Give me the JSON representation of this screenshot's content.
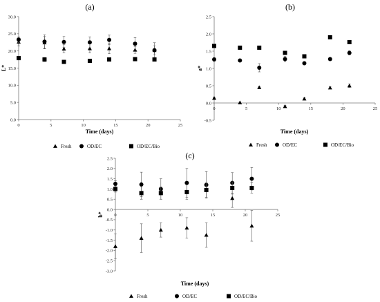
{
  "chart_data": [
    {
      "type": "scatter",
      "panel_label": "(a)",
      "xlabel": "Time (days)",
      "ylabel": "L*",
      "xlim": [
        0,
        25
      ],
      "ylim": [
        0,
        30
      ],
      "x_ticks": [
        "0",
        "5",
        "10",
        "15",
        "20",
        "25"
      ],
      "y_ticks": [
        "0.0",
        "5.0",
        "10.0",
        "15.0",
        "20.0",
        "25.0",
        "30.0"
      ],
      "grid": false,
      "legend_position": "bottom",
      "series": [
        {
          "name": "Fresh",
          "marker": "triangle",
          "x": [
            0,
            4,
            7,
            11,
            14,
            18,
            21
          ],
          "y": [
            22.6,
            22.4,
            20.6,
            20.7,
            20.7,
            20.3,
            20.2
          ],
          "err": [
            1.2,
            1.8,
            1.2,
            1.3,
            1.5,
            1.0,
            1.3
          ]
        },
        {
          "name": "OD/EC",
          "marker": "circle",
          "x": [
            0,
            4,
            7,
            11,
            14,
            18,
            21
          ],
          "y": [
            23.3,
            22.7,
            22.6,
            22.5,
            23.2,
            22.1,
            20.2
          ],
          "err": [
            0.8,
            2.0,
            1.6,
            1.6,
            1.4,
            1.8,
            2.2
          ]
        },
        {
          "name": "OD/EC/Bio",
          "marker": "square",
          "x": [
            0,
            4,
            7,
            11,
            14,
            18,
            21
          ],
          "y": [
            17.9,
            17.5,
            16.8,
            17.1,
            17.5,
            17.6,
            17.5
          ],
          "err": [
            0.4,
            0.6,
            0.4,
            0.3,
            0.5,
            0.4,
            0.4
          ]
        }
      ]
    },
    {
      "type": "scatter",
      "panel_label": "(b)",
      "xlabel": "Time (days)",
      "ylabel": "a*",
      "xlim": [
        0,
        25
      ],
      "ylim": [
        -0.5,
        2.5
      ],
      "x_ticks": [
        "0",
        "5",
        "10",
        "15",
        "20",
        "25"
      ],
      "y_ticks": [
        "-0.5",
        "0.0",
        "0.5",
        "1.0",
        "1.5",
        "2.0",
        "2.5"
      ],
      "grid": false,
      "legend_position": "bottom",
      "series": [
        {
          "name": "Fresh",
          "marker": "triangle",
          "x": [
            0,
            4,
            7,
            11,
            14,
            18,
            21
          ],
          "y": [
            0.14,
            0.01,
            0.45,
            -0.1,
            0.12,
            0.44,
            0.5
          ],
          "err": [
            0.03,
            0.02,
            0.03,
            0.03,
            0.03,
            0.03,
            0.05
          ]
        },
        {
          "name": "OD/EC",
          "marker": "circle",
          "x": [
            0,
            4,
            7,
            11,
            14,
            18,
            21
          ],
          "y": [
            1.26,
            1.23,
            1.02,
            1.27,
            1.15,
            1.27,
            1.45
          ],
          "err": [
            0.05,
            0.04,
            0.12,
            0.08,
            0.04,
            0.04,
            0.06
          ]
        },
        {
          "name": "OD/EC/Bio",
          "marker": "square",
          "x": [
            0,
            4,
            7,
            11,
            14,
            18,
            21
          ],
          "y": [
            1.65,
            1.6,
            1.6,
            1.45,
            1.35,
            1.9,
            1.76
          ],
          "err": [
            0.03,
            0.03,
            0.03,
            0.03,
            0.03,
            0.03,
            0.03
          ]
        }
      ]
    },
    {
      "type": "scatter",
      "panel_label": "(c)",
      "xlabel": "Time (days)",
      "ylabel": "b*",
      "xlim": [
        0,
        25
      ],
      "ylim": [
        -3,
        2.5
      ],
      "x_ticks": [
        "0",
        "5",
        "10",
        "15",
        "20",
        "25"
      ],
      "y_ticks": [
        "-3.0",
        "-2.5",
        "-2.0",
        "-1.5",
        "-1.0",
        "-0.5",
        "0.0",
        "0.5",
        "1.0",
        "1.5",
        "2.0",
        "2.5"
      ],
      "grid": false,
      "legend_position": "bottom",
      "series": [
        {
          "name": "Fresh",
          "marker": "triangle",
          "x": [
            0,
            4,
            7,
            11,
            14,
            18,
            21
          ],
          "y": [
            -1.8,
            -1.4,
            -1.0,
            -0.9,
            -1.25,
            0.55,
            -0.8
          ],
          "err": [
            0.6,
            0.7,
            0.35,
            0.5,
            0.6,
            0.45,
            0.75
          ]
        },
        {
          "name": "OD/EC",
          "marker": "circle",
          "x": [
            0,
            4,
            7,
            11,
            14,
            18,
            21
          ],
          "y": [
            1.25,
            1.22,
            1.0,
            1.3,
            1.2,
            1.3,
            1.5
          ],
          "err": [
            0.15,
            0.6,
            0.5,
            0.7,
            0.65,
            0.5,
            0.55
          ]
        },
        {
          "name": "OD/EC/Bio",
          "marker": "square",
          "x": [
            0,
            4,
            7,
            11,
            14,
            18,
            21
          ],
          "y": [
            1.0,
            0.8,
            0.8,
            0.85,
            0.95,
            1.05,
            1.05
          ],
          "err": [
            0.15,
            0.3,
            0.3,
            0.35,
            0.35,
            0.3,
            0.25
          ]
        }
      ]
    }
  ]
}
